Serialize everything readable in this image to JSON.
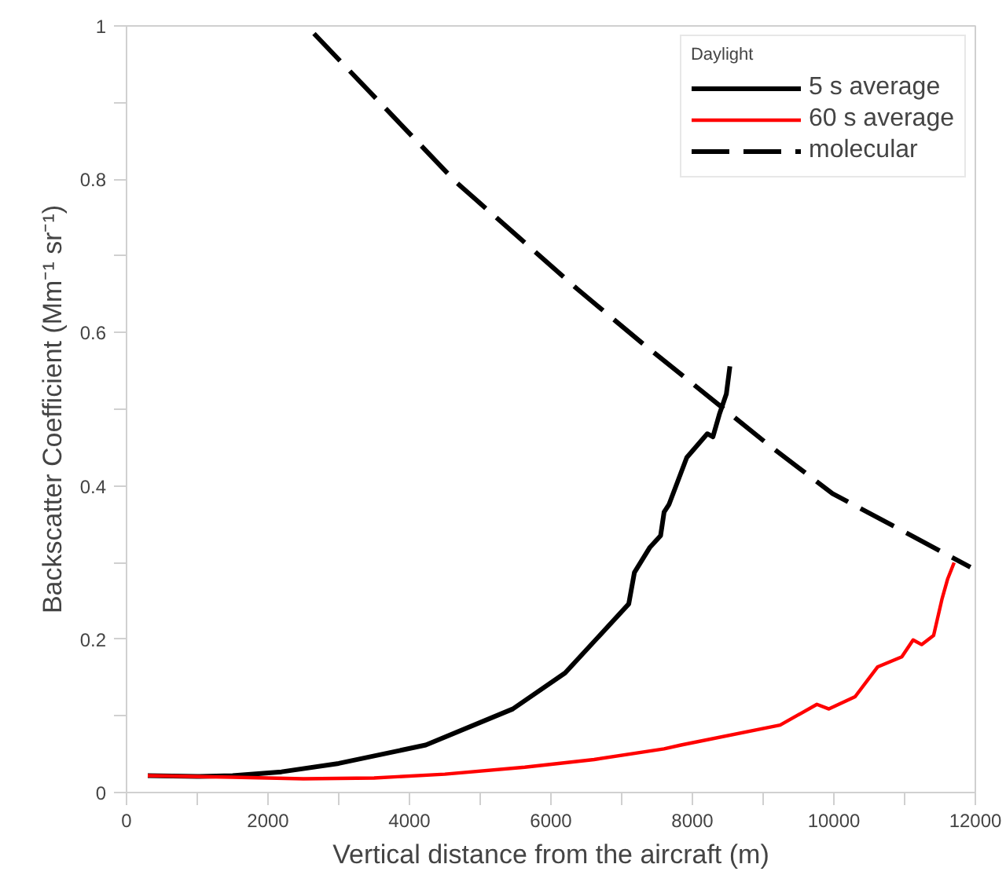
{
  "chart_data": {
    "type": "line",
    "xlabel": "Vertical distance from the aircraft (m)",
    "ylabel": "Backscatter Coefficient (Mm⁻¹ sr⁻¹)",
    "legend_title": "Daylight",
    "legend": "top right",
    "grid": false,
    "marker": "none",
    "xlim": [
      0,
      12000
    ],
    "ylim": [
      0,
      1
    ],
    "xticks": [
      0,
      {
        "value": 1000,
        "label": null
      },
      2000,
      {
        "value": 3000,
        "label": null
      },
      4000,
      {
        "value": 5000,
        "label": null
      },
      6000,
      {
        "value": 7000,
        "label": null
      },
      8000,
      {
        "value": 9000,
        "label": null
      },
      10000,
      {
        "value": 11000,
        "label": null
      },
      12000
    ],
    "yticks": [
      0,
      {
        "value": 0.1,
        "label": null
      },
      0.2,
      {
        "value": 0.3,
        "label": null
      },
      0.4,
      {
        "value": 0.5,
        "label": null
      },
      0.6,
      {
        "value": 0.7,
        "label": null
      },
      0.8,
      {
        "value": 0.9,
        "label": null
      },
      1
    ],
    "series": [
      {
        "name": "5 s average",
        "color": "#000000",
        "line_style": "solid",
        "x": [
          300,
          1000,
          1500,
          2190,
          3000,
          4230,
          5460,
          6200,
          6690,
          7100,
          7180,
          7400,
          7550,
          7600,
          7670,
          7920,
          8210,
          8290,
          8380,
          8480,
          8530
        ],
        "values": [
          0.022,
          0.021,
          0.022,
          0.027,
          0.038,
          0.062,
          0.109,
          0.156,
          0.205,
          0.246,
          0.287,
          0.32,
          0.335,
          0.366,
          0.376,
          0.437,
          0.468,
          0.464,
          0.493,
          0.52,
          0.556
        ]
      },
      {
        "name": "60 s average",
        "color": "#ff0000",
        "line_style": "solid",
        "x": [
          300,
          1500,
          2500,
          3500,
          4500,
          5630,
          6610,
          7600,
          7840,
          9240,
          9760,
          9930,
          10300,
          10620,
          10960,
          11120,
          11240,
          11410,
          11530,
          11610,
          11700
        ],
        "values": [
          0.022,
          0.02,
          0.018,
          0.019,
          0.024,
          0.033,
          0.043,
          0.057,
          0.062,
          0.088,
          0.115,
          0.109,
          0.125,
          0.164,
          0.177,
          0.199,
          0.193,
          0.205,
          0.253,
          0.279,
          0.3
        ]
      },
      {
        "name": "molecular",
        "color": "#000000",
        "line_style": "dashed",
        "x": [
          2650,
          4650,
          6370,
          7280,
          9070,
          9980,
          11020,
          11930
        ],
        "values": [
          0.99,
          0.797,
          0.657,
          0.587,
          0.454,
          0.39,
          0.339,
          0.294
        ]
      }
    ]
  }
}
